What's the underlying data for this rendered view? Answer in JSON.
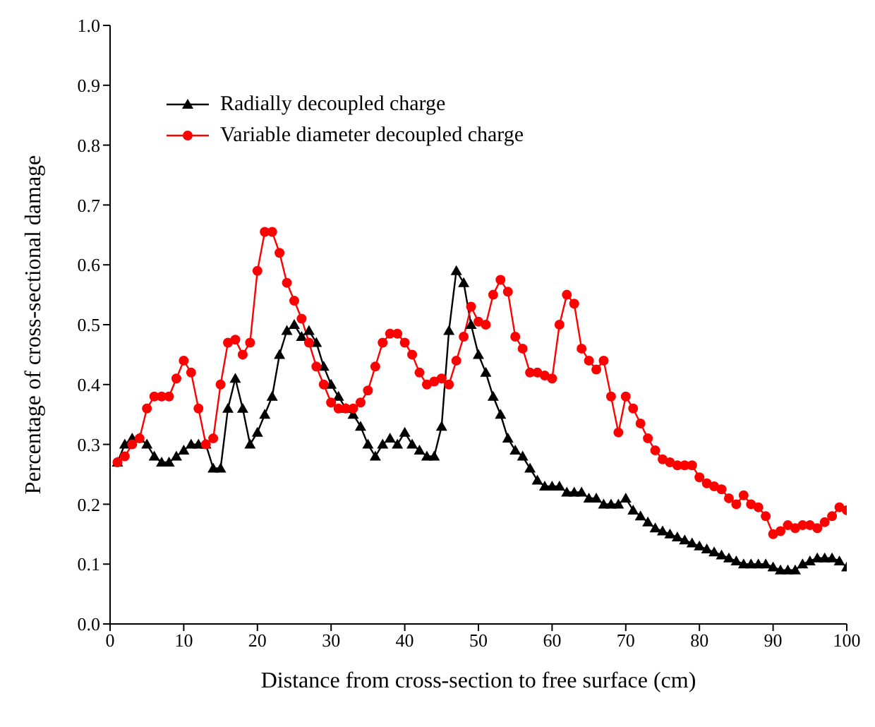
{
  "chart_data": {
    "type": "line",
    "xlabel": "Distance from cross-section to free surface (cm)",
    "ylabel": "Percentage of cross-sectional damage",
    "x": [
      1,
      2,
      3,
      4,
      5,
      6,
      7,
      8,
      9,
      10,
      11,
      12,
      13,
      14,
      15,
      16,
      17,
      18,
      19,
      20,
      21,
      22,
      23,
      24,
      25,
      26,
      27,
      28,
      29,
      30,
      31,
      32,
      33,
      34,
      35,
      36,
      37,
      38,
      39,
      40,
      41,
      42,
      43,
      44,
      45,
      46,
      47,
      48,
      49,
      50,
      51,
      52,
      53,
      54,
      55,
      56,
      57,
      58,
      59,
      60,
      61,
      62,
      63,
      64,
      65,
      66,
      67,
      68,
      69,
      70,
      71,
      72,
      73,
      74,
      75,
      76,
      77,
      78,
      79,
      80,
      81,
      82,
      83,
      84,
      85,
      86,
      87,
      88,
      89,
      90,
      91,
      92,
      93,
      94,
      95,
      96,
      97,
      98,
      99,
      100
    ],
    "series": [
      {
        "name": "Radially decoupled charge",
        "color": "#000000",
        "marker": "triangle",
        "values": [
          0.27,
          0.3,
          0.31,
          0.31,
          0.3,
          0.28,
          0.27,
          0.27,
          0.28,
          0.29,
          0.3,
          0.3,
          0.3,
          0.26,
          0.26,
          0.36,
          0.41,
          0.36,
          0.3,
          0.32,
          0.35,
          0.38,
          0.45,
          0.49,
          0.5,
          0.48,
          0.49,
          0.47,
          0.43,
          0.4,
          0.38,
          0.36,
          0.35,
          0.33,
          0.3,
          0.28,
          0.3,
          0.31,
          0.3,
          0.32,
          0.3,
          0.29,
          0.28,
          0.28,
          0.33,
          0.49,
          0.59,
          0.57,
          0.5,
          0.45,
          0.42,
          0.38,
          0.35,
          0.31,
          0.29,
          0.28,
          0.26,
          0.24,
          0.23,
          0.23,
          0.23,
          0.22,
          0.22,
          0.22,
          0.21,
          0.21,
          0.2,
          0.2,
          0.2,
          0.21,
          0.19,
          0.18,
          0.17,
          0.16,
          0.155,
          0.15,
          0.145,
          0.14,
          0.135,
          0.13,
          0.125,
          0.12,
          0.115,
          0.11,
          0.105,
          0.1,
          0.1,
          0.1,
          0.1,
          0.095,
          0.09,
          0.09,
          0.09,
          0.1,
          0.105,
          0.11,
          0.11,
          0.11,
          0.105,
          0.095
        ]
      },
      {
        "name": "Variable diameter decoupled charge",
        "color": "#ff0000",
        "marker": "circle",
        "values": [
          0.27,
          0.28,
          0.3,
          0.31,
          0.36,
          0.38,
          0.38,
          0.38,
          0.41,
          0.44,
          0.42,
          0.36,
          0.3,
          0.31,
          0.4,
          0.47,
          0.475,
          0.45,
          0.47,
          0.59,
          0.655,
          0.655,
          0.62,
          0.57,
          0.54,
          0.51,
          0.47,
          0.43,
          0.4,
          0.37,
          0.36,
          0.36,
          0.36,
          0.37,
          0.39,
          0.43,
          0.47,
          0.485,
          0.485,
          0.47,
          0.45,
          0.42,
          0.4,
          0.405,
          0.41,
          0.4,
          0.44,
          0.48,
          0.53,
          0.505,
          0.5,
          0.55,
          0.575,
          0.555,
          0.48,
          0.46,
          0.42,
          0.42,
          0.415,
          0.41,
          0.5,
          0.55,
          0.535,
          0.46,
          0.44,
          0.425,
          0.44,
          0.38,
          0.32,
          0.38,
          0.36,
          0.335,
          0.31,
          0.29,
          0.275,
          0.27,
          0.265,
          0.265,
          0.265,
          0.245,
          0.235,
          0.23,
          0.225,
          0.21,
          0.2,
          0.215,
          0.2,
          0.195,
          0.18,
          0.15,
          0.155,
          0.165,
          0.16,
          0.165,
          0.165,
          0.16,
          0.17,
          0.18,
          0.195,
          0.19
        ]
      }
    ],
    "xlim": [
      0,
      100
    ],
    "xticks": [
      0,
      10,
      20,
      30,
      40,
      50,
      60,
      70,
      80,
      90,
      100
    ],
    "ylim": [
      0,
      1
    ],
    "yticks": [
      {
        "value": 0,
        "label": "0.0"
      },
      0.1,
      0.2,
      0.3,
      0.4,
      0.5,
      0.6,
      0.7,
      0.8,
      0.9,
      {
        "value": 1,
        "label": "1.0"
      }
    ],
    "legend": "top left",
    "grid": false
  }
}
